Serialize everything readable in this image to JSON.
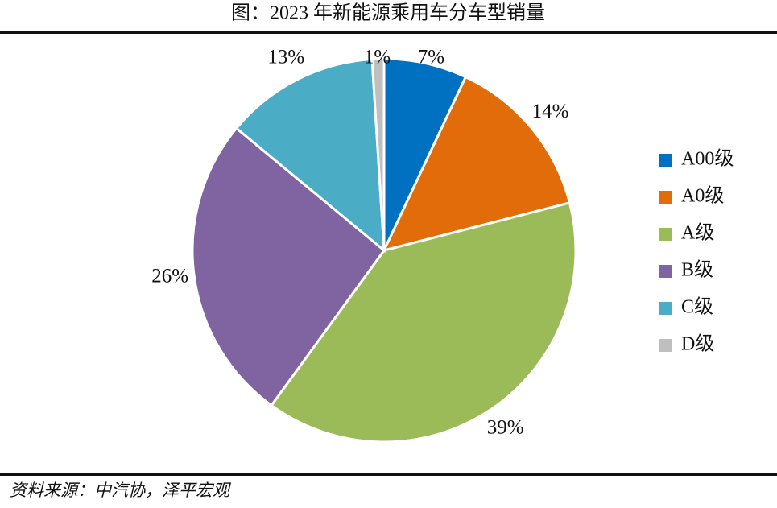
{
  "chart_data": {
    "type": "pie",
    "title": "图：2023 年新能源乘用车分车型销量",
    "categories": [
      "A00级",
      "A0级",
      "A级",
      "B级",
      "C级",
      "D级"
    ],
    "values": [
      7,
      14,
      39,
      26,
      13,
      1
    ],
    "value_labels": [
      "7%",
      "14%",
      "39%",
      "26%",
      "13%",
      "1%"
    ],
    "colors": [
      "#0070c0",
      "#e36c0a",
      "#9bbb59",
      "#8064a2",
      "#4bacc6",
      "#bfbfbf"
    ],
    "legend": "right",
    "source": "资料来源：中汽协，泽平宏观"
  }
}
